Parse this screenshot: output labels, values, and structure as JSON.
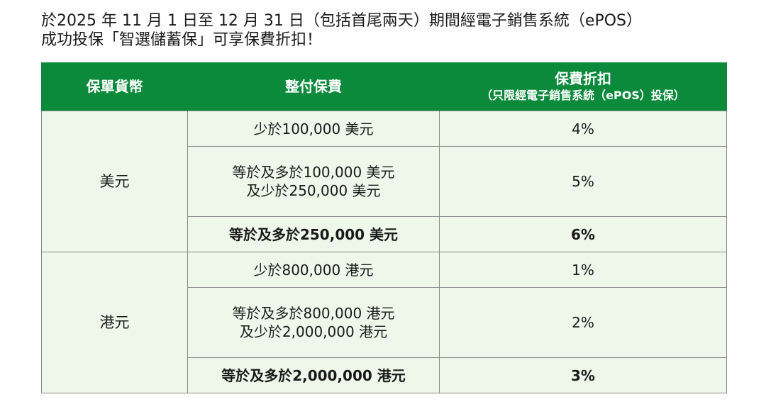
{
  "intro": {
    "line1": "於2025 年 11 月 1 日至 12 月 31 日（包括首尾兩天）期間經電子銷售系統（ePOS）",
    "line2": "成功投保「智選儲蓄保」可享保費折扣！"
  },
  "table": {
    "headers": {
      "currency": "保單貨幣",
      "premium": "整付保費",
      "discount_main": "保費折扣",
      "discount_sub": "（只限經電子銷售系統（ePOS）投保）"
    },
    "groups": [
      {
        "currency": "美元",
        "rows": [
          {
            "premium_line1": "少於100,000 美元",
            "premium_line2": "",
            "discount": "4%",
            "bold": false
          },
          {
            "premium_line1": "等於及多於100,000 美元",
            "premium_line2": "及少於250,000 美元",
            "discount": "5%",
            "bold": false
          },
          {
            "premium_line1": "等於及多於250,000 美元",
            "premium_line2": "",
            "discount": "6%",
            "bold": true
          }
        ]
      },
      {
        "currency": "港元",
        "rows": [
          {
            "premium_line1": "少於800,000 港元",
            "premium_line2": "",
            "discount": "1%",
            "bold": false
          },
          {
            "premium_line1": "等於及多於800,000 港元",
            "premium_line2": "及少於2,000,000 港元",
            "discount": "2%",
            "bold": false
          },
          {
            "premium_line1": "等於及多於2,000,000 港元",
            "premium_line2": "",
            "discount": "3%",
            "bold": true
          }
        ]
      }
    ]
  },
  "colors": {
    "header_green": "#0a8a3a",
    "cell_background": "#eef7ea",
    "border_grey": "#8a8a8a"
  }
}
